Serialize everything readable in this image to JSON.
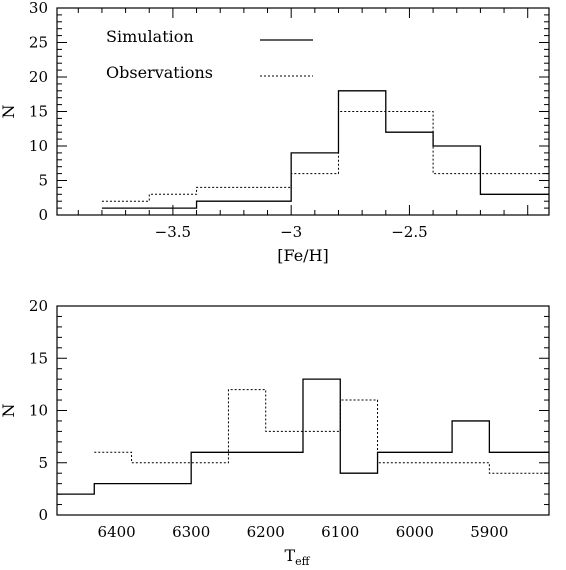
{
  "chart_data": [
    {
      "type": "histogram",
      "xlabel": "[Fe/H]",
      "ylabel": "N",
      "xlim": [
        -3.99,
        -1.91
      ],
      "ylim": [
        0,
        30
      ],
      "x_ticks": [
        -3.5,
        -3,
        -2.5
      ],
      "x_tick_labels": [
        "−3.5",
        "−3",
        "−2.5"
      ],
      "y_ticks": [
        0,
        5,
        10,
        15,
        20,
        25,
        30
      ],
      "legend_position": "top-left",
      "series": [
        {
          "name": "Simulation",
          "style": "solid",
          "bin_edges": [
            -3.8,
            -3.4,
            -3.0,
            -2.8,
            -2.6,
            -2.4,
            -2.2,
            -1.91
          ],
          "counts": [
            1,
            2,
            9,
            18,
            12,
            10,
            3
          ]
        },
        {
          "name": "Observations",
          "style": "dotted",
          "bin_edges": [
            -3.8,
            -3.6,
            -3.4,
            -3.0,
            -2.8,
            -2.4,
            -1.91
          ],
          "counts": [
            2,
            3,
            4,
            6,
            15,
            6
          ]
        }
      ]
    },
    {
      "type": "histogram",
      "xlabel": "T",
      "xlabel_sub": "eff",
      "ylabel": "N",
      "x_reversed": true,
      "xlim": [
        6480,
        5820
      ],
      "ylim": [
        0,
        20
      ],
      "x_ticks": [
        6400,
        6300,
        6200,
        6100,
        6000,
        5900
      ],
      "x_tick_labels": [
        "6400",
        "6300",
        "6200",
        "6100",
        "6000",
        "5900"
      ],
      "y_ticks": [
        0,
        5,
        10,
        15,
        20
      ],
      "series": [
        {
          "name": "Simulation",
          "style": "solid",
          "bin_edges": [
            6480,
            6430,
            6300,
            6250,
            6150,
            6100,
            6050,
            5950,
            5900,
            5820
          ],
          "counts": [
            2,
            3,
            6,
            6,
            13,
            4,
            6,
            9,
            6
          ]
        },
        {
          "name": "Observations",
          "style": "dotted",
          "bin_edges": [
            6430,
            6380,
            6250,
            6200,
            6150,
            6100,
            6050,
            5900,
            5820
          ],
          "counts": [
            6,
            5,
            12,
            8,
            8,
            11,
            5,
            4
          ]
        }
      ]
    }
  ]
}
